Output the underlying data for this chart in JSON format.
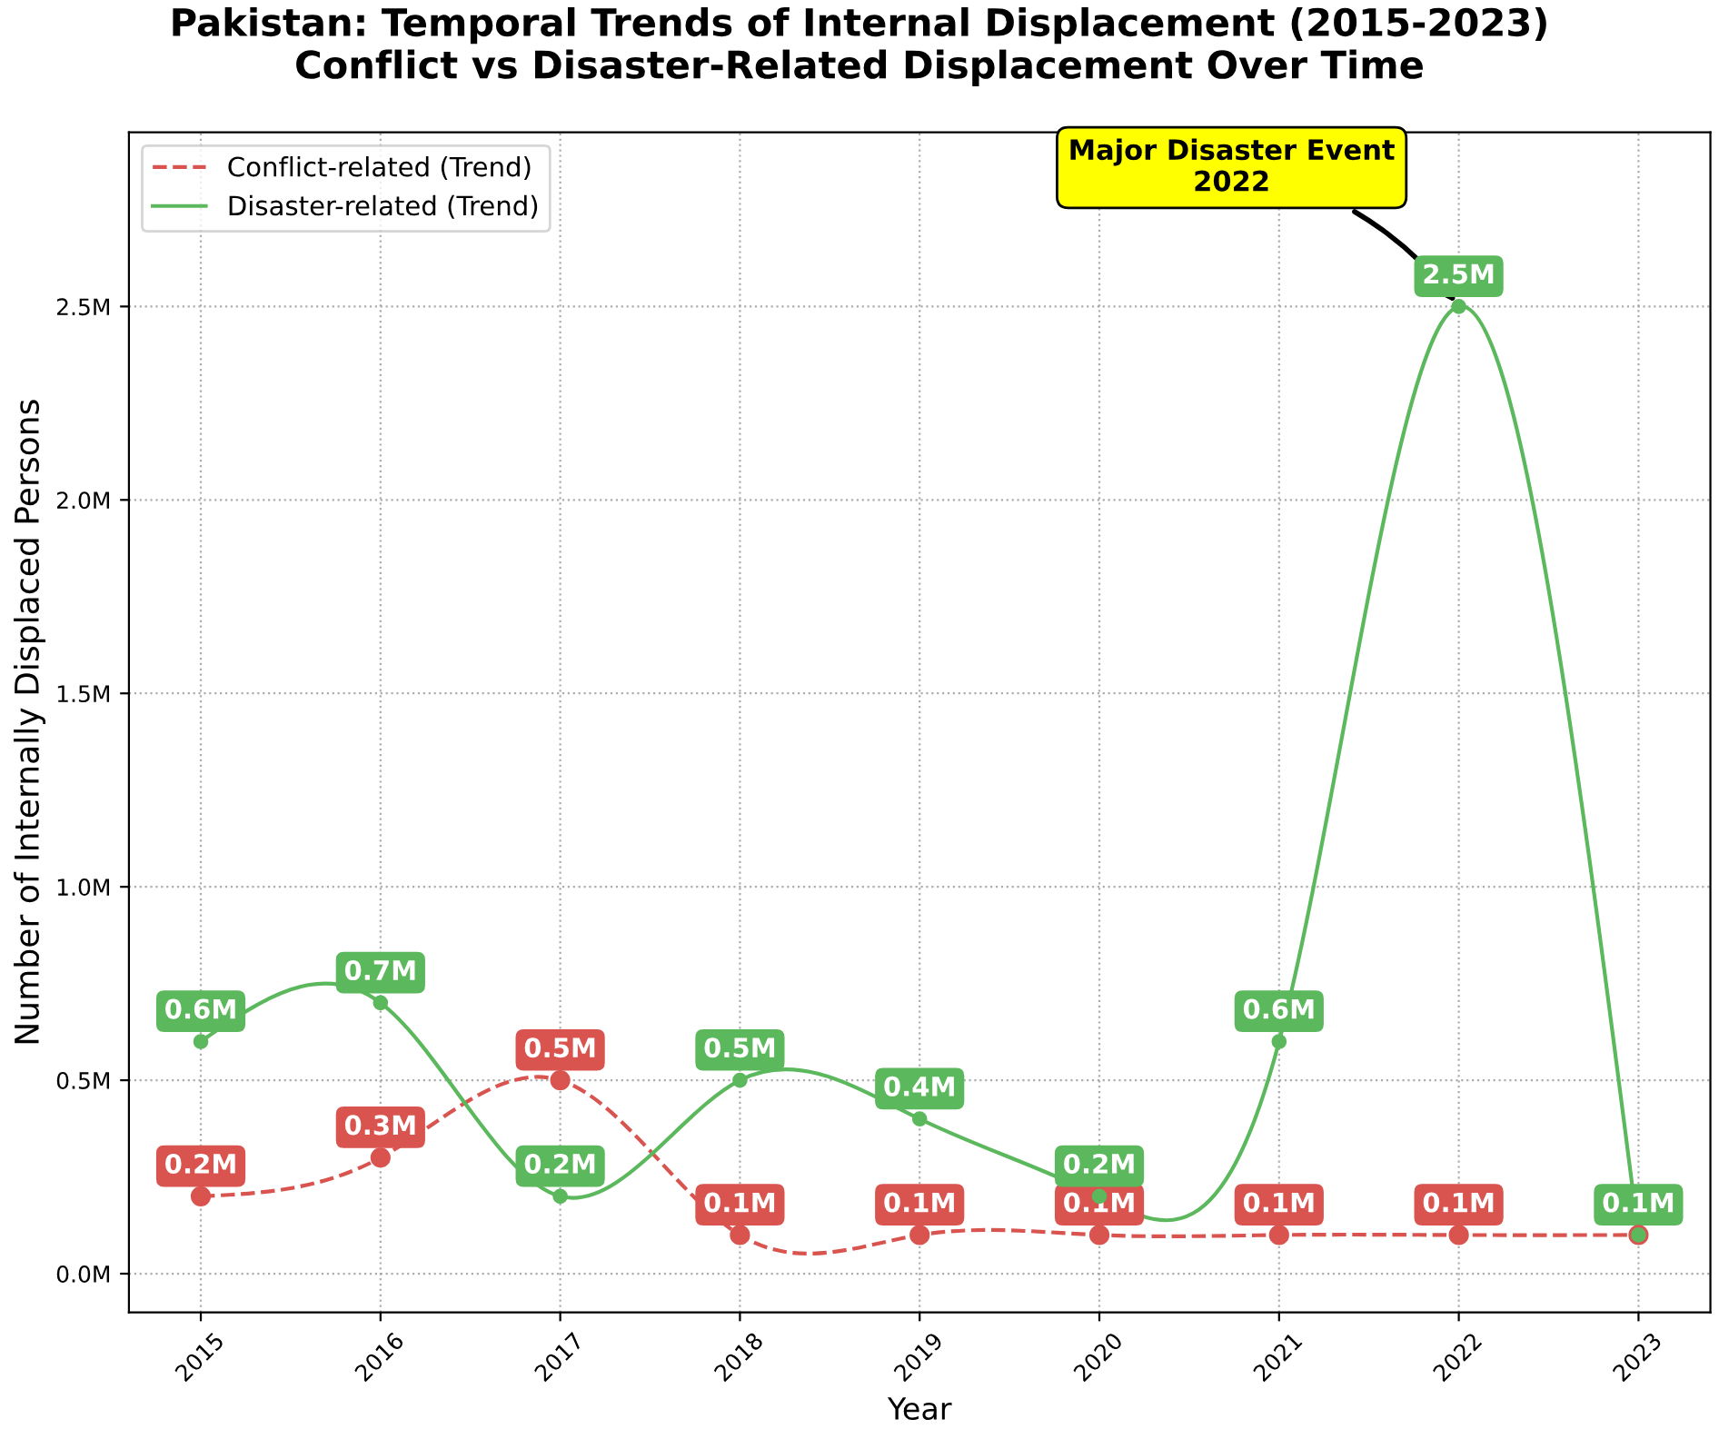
{
  "chart_data": {
    "type": "line",
    "title": "Pakistan: Temporal Trends of Internal Displacement (2015-2023)\nConflict vs Disaster-Related Displacement Over Time",
    "xlabel": "Year",
    "ylabel": "Number of Internally Displaced Persons",
    "x": [
      2015,
      2016,
      2017,
      2018,
      2019,
      2020,
      2021,
      2022,
      2023
    ],
    "series": [
      {
        "name": "Conflict-related (Trend)",
        "color": "#d9534f",
        "line_style": "dashed",
        "values": [
          0.2,
          0.3,
          0.5,
          0.1,
          0.1,
          0.1,
          0.1,
          0.1,
          0.1
        ],
        "value_labels": [
          "0.2M",
          "0.3M",
          "0.5M",
          "0.1M",
          "0.1M",
          "0.1M",
          "0.1M",
          "0.1M",
          null
        ]
      },
      {
        "name": "Disaster-related (Trend)",
        "color": "#5cb85c",
        "line_style": "solid",
        "values": [
          0.6,
          0.7,
          0.2,
          0.5,
          0.4,
          0.2,
          0.6,
          2.5,
          0.1
        ],
        "value_labels": [
          "0.6M",
          "0.7M",
          "0.2M",
          "0.5M",
          "0.4M",
          "0.2M",
          "0.6M",
          "2.5M",
          "0.1M"
        ]
      }
    ],
    "xlim": [
      2014.6,
      2023.4
    ],
    "ylim": [
      -0.1,
      2.95
    ],
    "xticks": [
      2015,
      2016,
      2017,
      2018,
      2019,
      2020,
      2021,
      2022,
      2023
    ],
    "yticks": [
      {
        "value": 0,
        "label": "0.0M"
      },
      {
        "value": 0.5,
        "label": "0.5M"
      },
      {
        "value": 1.0,
        "label": "1.0M"
      },
      {
        "value": 1.5,
        "label": "1.5M"
      },
      {
        "value": 2.0,
        "label": "2.0M"
      },
      {
        "value": 2.5,
        "label": "2.5M"
      }
    ],
    "annotations": [
      {
        "text": "Major Disaster Event\n2022",
        "x": 2022,
        "y": 2.5
      }
    ],
    "grid": true,
    "legend": "top left",
    "marker": "circle"
  }
}
